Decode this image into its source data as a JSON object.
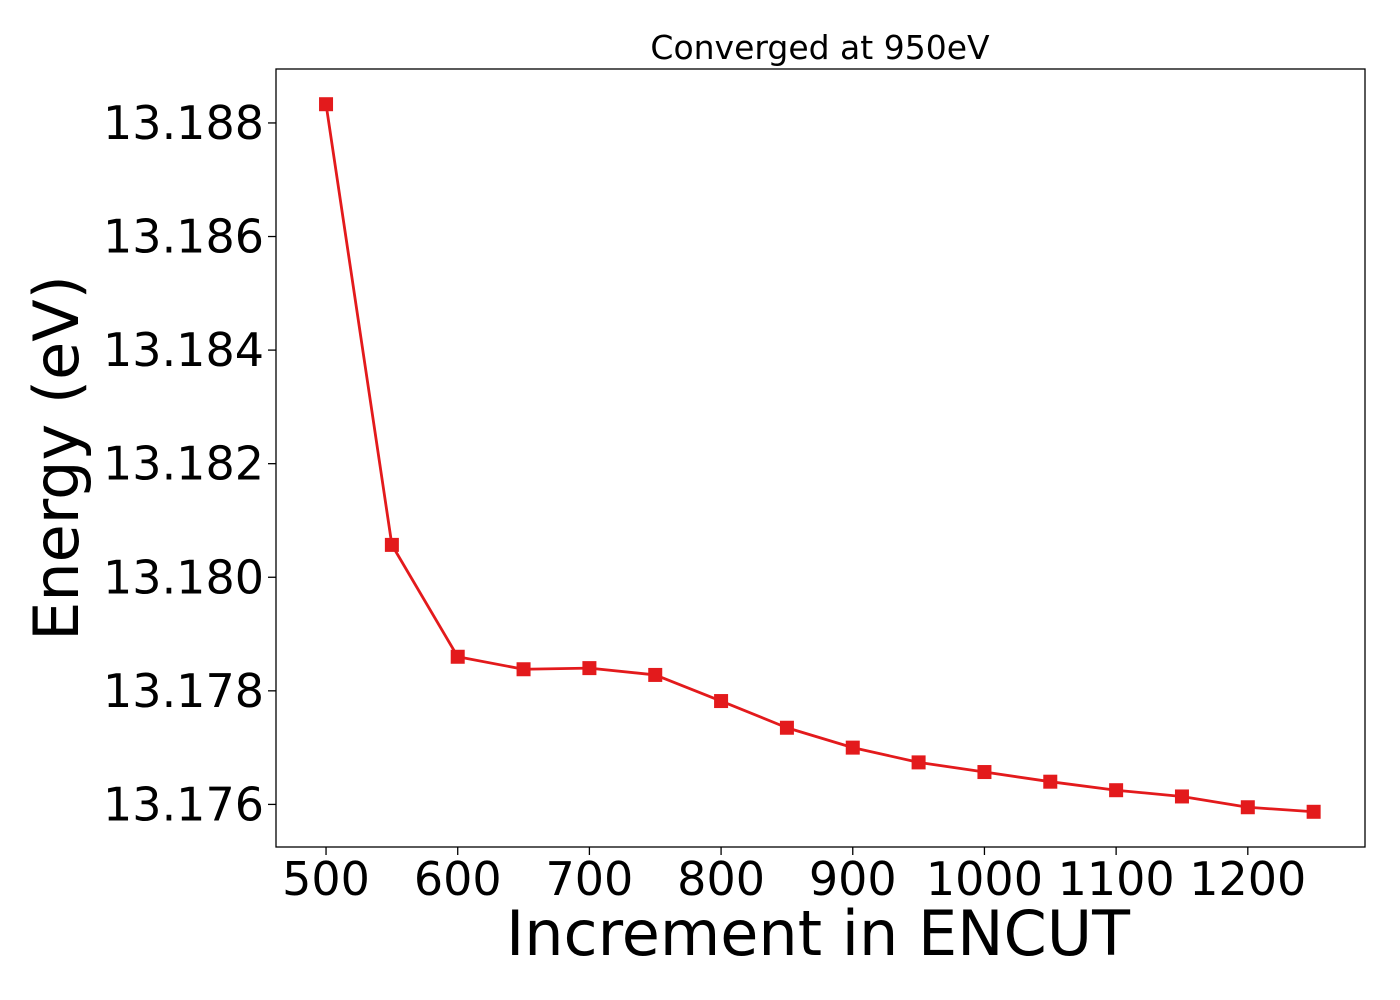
{
  "chart_data": {
    "type": "line",
    "title": "Converged at 950eV",
    "xlabel": "Increment in ENCUT",
    "ylabel": "Energy (eV)",
    "x": [
      500,
      550,
      600,
      650,
      700,
      750,
      800,
      850,
      900,
      950,
      1000,
      1050,
      1100,
      1150,
      1200,
      1250
    ],
    "series": [
      {
        "values": [
          13.18833,
          13.18057,
          13.1786,
          13.17838,
          13.1784,
          13.17828,
          13.17782,
          13.17735,
          13.177,
          13.17674,
          13.17657,
          13.1764,
          13.17625,
          13.17614,
          13.17595,
          13.17587
        ],
        "color": "#e31a1c",
        "marker": "square"
      }
    ],
    "xlim": [
      462,
      1289
    ],
    "ylim": [
      13.17525,
      13.18895
    ],
    "xticks": [
      500,
      600,
      700,
      800,
      900,
      1000,
      1100,
      1200
    ],
    "xtick_labels": [
      "500",
      "600",
      "700",
      "800",
      "900",
      "1000",
      "1100",
      "1200"
    ],
    "yticks": [
      13.176,
      13.178,
      13.18,
      13.182,
      13.184,
      13.186,
      13.188
    ],
    "ytick_labels": [
      "13.176",
      "13.178",
      "13.180",
      "13.182",
      "13.184",
      "13.186",
      "13.188"
    ],
    "grid": false,
    "legend": "none"
  }
}
